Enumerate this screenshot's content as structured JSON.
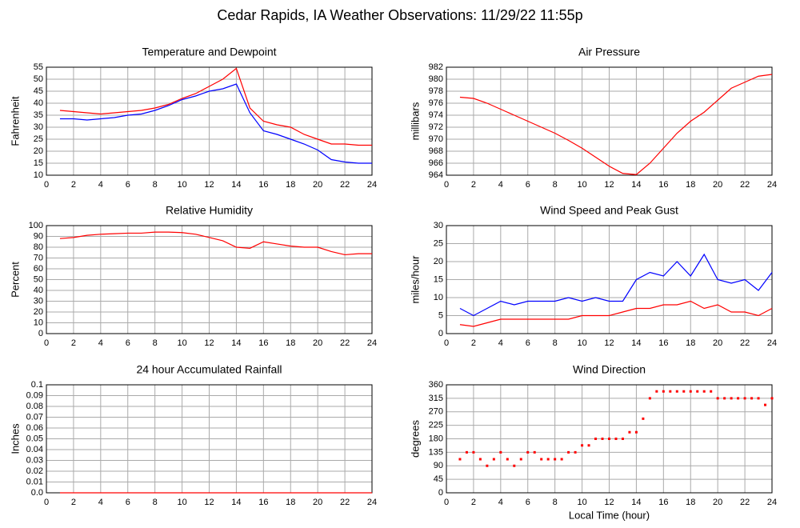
{
  "title": "Cedar Rapids, IA Weather Observations: 11/29/22 11:55p",
  "chart_data": [
    {
      "type": "line",
      "title": "Temperature and Dewpoint",
      "ylabel": "Fahrenheit",
      "x": [
        1,
        2,
        3,
        4,
        5,
        6,
        7,
        8,
        9,
        10,
        11,
        12,
        13,
        14,
        15,
        16,
        17,
        18,
        19,
        20,
        21,
        22,
        23,
        24
      ],
      "series": [
        {
          "color": "#ff0000",
          "values": [
            37,
            36.5,
            36,
            35.5,
            36,
            36.5,
            37,
            38,
            39.5,
            42,
            44,
            47,
            50,
            54.5,
            38,
            32.5,
            31,
            30,
            27,
            25,
            23,
            23,
            22.5,
            22.5
          ]
        },
        {
          "color": "#0000ff",
          "values": [
            33.5,
            33.5,
            33,
            33.5,
            34,
            35,
            35.5,
            37,
            39,
            41.5,
            43,
            45,
            46,
            48,
            36,
            28.5,
            27,
            25,
            23,
            20.5,
            16.5,
            15.5,
            15,
            15
          ]
        }
      ],
      "xlim": [
        0,
        24
      ],
      "xticks": [
        0,
        2,
        4,
        6,
        8,
        10,
        12,
        14,
        16,
        18,
        20,
        22,
        24
      ],
      "ylim": [
        10,
        55
      ],
      "yticks": [
        10,
        15,
        20,
        25,
        30,
        35,
        40,
        45,
        50,
        55
      ],
      "grid": true
    },
    {
      "type": "line",
      "title": "Air Pressure",
      "ylabel": "millibars",
      "x": [
        1,
        2,
        3,
        4,
        5,
        6,
        7,
        8,
        9,
        10,
        11,
        12,
        13,
        14,
        15,
        16,
        17,
        18,
        19,
        20,
        21,
        22,
        23,
        24
      ],
      "series": [
        {
          "color": "#ff0000",
          "values": [
            977,
            976.8,
            976,
            975,
            974,
            973,
            972,
            971,
            969.8,
            968.5,
            967,
            965.5,
            964.3,
            964.1,
            966,
            968.5,
            971,
            973,
            974.5,
            976.5,
            978.5,
            979.5,
            980.5,
            980.8
          ]
        }
      ],
      "xlim": [
        0,
        24
      ],
      "xticks": [
        0,
        2,
        4,
        6,
        8,
        10,
        12,
        14,
        16,
        18,
        20,
        22,
        24
      ],
      "ylim": [
        964,
        982
      ],
      "yticks": [
        964,
        966,
        968,
        970,
        972,
        974,
        976,
        978,
        980,
        982
      ],
      "grid": true
    },
    {
      "type": "line",
      "title": "Relative Humidity",
      "ylabel": "Percent",
      "x": [
        1,
        2,
        3,
        4,
        5,
        6,
        7,
        8,
        9,
        10,
        11,
        12,
        13,
        14,
        15,
        16,
        17,
        18,
        19,
        20,
        21,
        22,
        23,
        24
      ],
      "series": [
        {
          "color": "#ff0000",
          "values": [
            88,
            89,
            91,
            92,
            92.5,
            93,
            93,
            94,
            94,
            93.5,
            92,
            89,
            86,
            80,
            79,
            85,
            83,
            81,
            80,
            80,
            76,
            73,
            74,
            74
          ]
        }
      ],
      "xlim": [
        0,
        24
      ],
      "xticks": [
        0,
        2,
        4,
        6,
        8,
        10,
        12,
        14,
        16,
        18,
        20,
        22,
        24
      ],
      "ylim": [
        0,
        100
      ],
      "yticks": [
        0,
        10,
        20,
        30,
        40,
        50,
        60,
        70,
        80,
        90,
        100
      ],
      "grid": true
    },
    {
      "type": "line",
      "title": "Wind Speed and Peak Gust",
      "ylabel": "miles/hour",
      "x": [
        1,
        2,
        3,
        4,
        5,
        6,
        7,
        8,
        9,
        10,
        11,
        12,
        13,
        14,
        15,
        16,
        17,
        18,
        19,
        20,
        21,
        22,
        23,
        24
      ],
      "series": [
        {
          "color": "#0000ff",
          "values": [
            7,
            5,
            7,
            9,
            8,
            9,
            9,
            9,
            10,
            9,
            10,
            9,
            9,
            15,
            17,
            16,
            20,
            16,
            22,
            15,
            14,
            15,
            12,
            17
          ]
        },
        {
          "color": "#ff0000",
          "values": [
            2.5,
            2,
            3,
            4,
            4,
            4,
            4,
            4,
            4,
            5,
            5,
            5,
            6,
            7,
            7,
            8,
            8,
            9,
            7,
            8,
            6,
            6,
            5,
            7
          ]
        }
      ],
      "xlim": [
        0,
        24
      ],
      "xticks": [
        0,
        2,
        4,
        6,
        8,
        10,
        12,
        14,
        16,
        18,
        20,
        22,
        24
      ],
      "ylim": [
        0,
        30
      ],
      "yticks": [
        0,
        5,
        10,
        15,
        20,
        25,
        30
      ],
      "grid": true
    },
    {
      "type": "line",
      "title": "24 hour Accumulated Rainfall",
      "ylabel": "Inches",
      "x": [
        1,
        2,
        3,
        4,
        5,
        6,
        7,
        8,
        9,
        10,
        11,
        12,
        13,
        14,
        15,
        16,
        17,
        18,
        19,
        20,
        21,
        22,
        23,
        24
      ],
      "series": [
        {
          "color": "#ff0000",
          "values": [
            0,
            0,
            0,
            0,
            0,
            0,
            0,
            0,
            0,
            0,
            0,
            0,
            0,
            0,
            0,
            0,
            0,
            0,
            0,
            0,
            0,
            0,
            0,
            0
          ]
        }
      ],
      "xlim": [
        0,
        24
      ],
      "xticks": [
        0,
        2,
        4,
        6,
        8,
        10,
        12,
        14,
        16,
        18,
        20,
        22,
        24
      ],
      "ylim": [
        0,
        0.1
      ],
      "yticks": [
        {
          "value": 0,
          "label": "0.0"
        },
        0.01,
        0.02,
        0.03,
        0.04,
        0.05,
        0.06,
        0.07,
        0.08,
        0.09,
        0.1
      ],
      "grid": true
    },
    {
      "type": "scatter",
      "title": "Wind Direction",
      "ylabel": "degrees",
      "xlabel": "Local Time (hour)",
      "x": [
        1,
        1.5,
        2,
        2.5,
        3,
        3.5,
        4,
        4.5,
        5,
        5.5,
        6,
        6.5,
        7,
        7.5,
        8,
        8.5,
        9,
        9.5,
        10,
        10.5,
        11,
        11.5,
        12,
        12.5,
        13,
        13.5,
        14,
        14.5,
        15,
        15.5,
        16,
        16.5,
        17,
        17.5,
        18,
        18.5,
        19,
        19.5,
        20,
        20.5,
        21,
        21.5,
        22,
        22.5,
        23,
        23.5,
        24
      ],
      "series": [
        {
          "color": "#ff0000",
          "values": [
            112,
            135,
            135,
            112,
            90,
            112,
            135,
            112,
            90,
            112,
            135,
            135,
            112,
            112,
            112,
            112,
            135,
            135,
            158,
            158,
            180,
            180,
            180,
            180,
            180,
            202,
            202,
            247,
            315,
            338,
            338,
            338,
            338,
            338,
            338,
            338,
            338,
            338,
            315,
            315,
            315,
            315,
            315,
            315,
            315,
            293,
            315
          ]
        }
      ],
      "xlim": [
        0,
        24
      ],
      "xticks": [
        0,
        2,
        4,
        6,
        8,
        10,
        12,
        14,
        16,
        18,
        20,
        22,
        24
      ],
      "ylim": [
        0,
        360
      ],
      "yticks": [
        0,
        45,
        90,
        135,
        180,
        225,
        270,
        315,
        360
      ],
      "grid": true
    }
  ]
}
